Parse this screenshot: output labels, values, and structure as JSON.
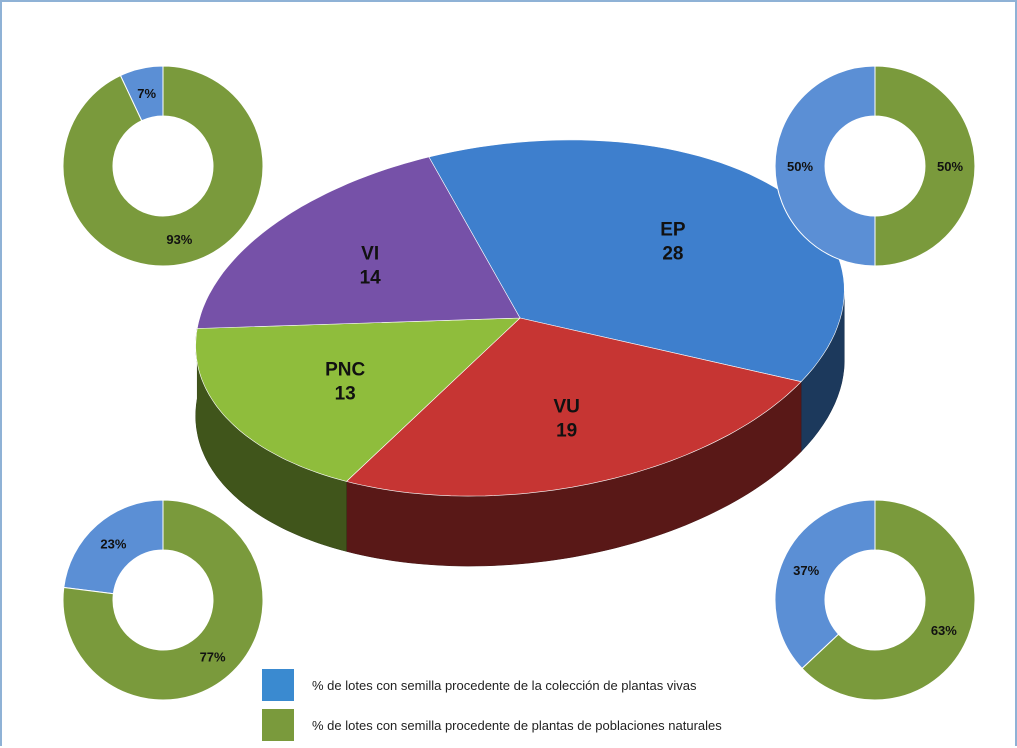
{
  "colors": {
    "EP": "#3e7fcd",
    "VU": "#c63533",
    "VI": "#7651a8",
    "PNC": "#8fbd3c",
    "vivas": "#5b8fd5",
    "naturales": "#7a9a3c",
    "frame": "#8fb2d6"
  },
  "chart_data": [
    {
      "type": "pie",
      "style": "3d",
      "slices": [
        {
          "label": "EP",
          "value": 28,
          "color": "#3e7fcd"
        },
        {
          "label": "VU",
          "value": 19,
          "color": "#c63533"
        },
        {
          "label": "PNC",
          "value": 13,
          "color": "#8fbd3c"
        },
        {
          "label": "VI",
          "value": 14,
          "color": "#7651a8"
        }
      ]
    },
    {
      "type": "pie",
      "style": "donut",
      "position": "top-left",
      "values": [
        7,
        93
      ],
      "labels": [
        "7%",
        "93%"
      ],
      "series": [
        "vivas",
        "naturales"
      ]
    },
    {
      "type": "pie",
      "style": "donut",
      "position": "top-right",
      "values": [
        50,
        50
      ],
      "labels": [
        "50%",
        "50%"
      ],
      "series": [
        "vivas",
        "naturales"
      ]
    },
    {
      "type": "pie",
      "style": "donut",
      "position": "bottom-left",
      "values": [
        23,
        77
      ],
      "labels": [
        "23%",
        "77%"
      ],
      "series": [
        "vivas",
        "naturales"
      ]
    },
    {
      "type": "pie",
      "style": "donut",
      "position": "bottom-right",
      "values": [
        37,
        63
      ],
      "labels": [
        "37%",
        "63%"
      ],
      "series": [
        "vivas",
        "naturales"
      ]
    }
  ],
  "legend": [
    {
      "label": "% de lotes con semilla procedente de la colección de plantas vivas",
      "color": "#3a8ad0"
    },
    {
      "label": "% de lotes con semilla procedente de plantas de poblaciones naturales",
      "color": "#7a9a3c"
    }
  ]
}
